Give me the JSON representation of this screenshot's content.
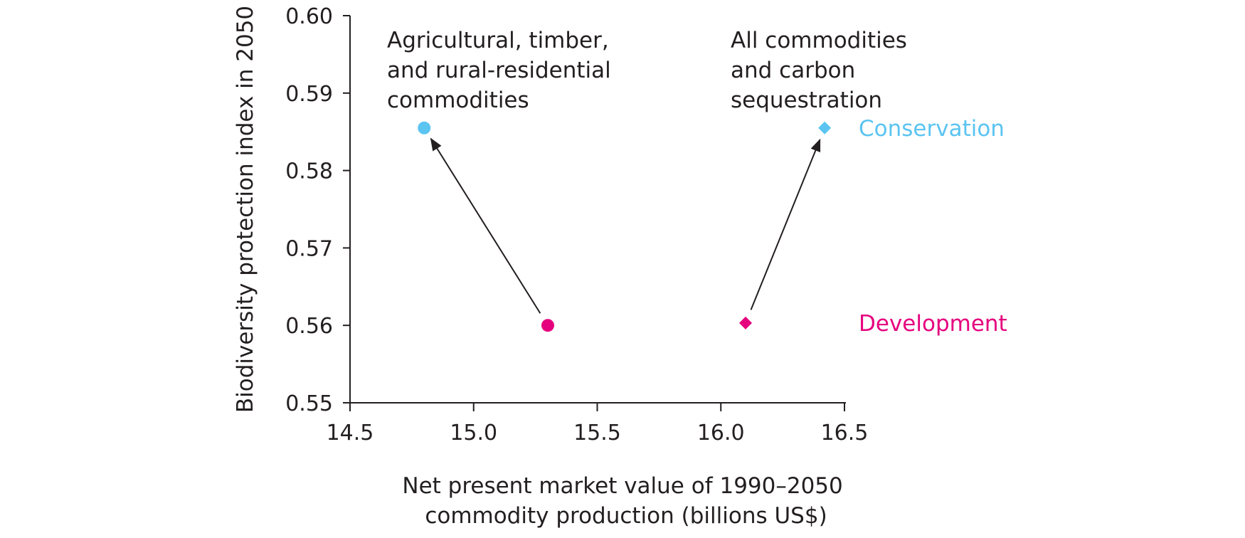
{
  "chart_data": {
    "type": "scatter",
    "title": "",
    "xlabel_lines": [
      "Net present market value of 1990–2050",
      "commodity production (billions US$)"
    ],
    "ylabel": "Biodiversity protection index in 2050",
    "xlim": [
      14.5,
      16.5
    ],
    "ylim": [
      0.55,
      0.6
    ],
    "xticks": [
      "14.5",
      "15.0",
      "15.5",
      "16.0",
      "16.5"
    ],
    "yticks": [
      "0.55",
      "0.56",
      "0.57",
      "0.58",
      "0.59",
      "0.60"
    ],
    "grid": false,
    "series": [
      {
        "name": "Agricultural, timber, and rural-residential commodities",
        "marker": "circle",
        "points": [
          {
            "scenario": "Development",
            "x": 15.3,
            "y": 0.56
          },
          {
            "scenario": "Conservation",
            "x": 14.8,
            "y": 0.5855
          }
        ]
      },
      {
        "name": "All commodities and carbon sequestration",
        "marker": "diamond",
        "points": [
          {
            "scenario": "Development",
            "x": 16.1,
            "y": 0.5603
          },
          {
            "scenario": "Conservation",
            "x": 16.42,
            "y": 0.5855
          }
        ]
      }
    ],
    "annotations": [
      {
        "lines": [
          "Agricultural, timber,",
          "and rural-residential",
          "commodities"
        ]
      },
      {
        "lines": [
          "All commodities",
          "and carbon",
          "sequestration"
        ]
      }
    ],
    "legend": [
      {
        "label": "Conservation",
        "color": "#5bc4f1"
      },
      {
        "label": "Development",
        "color": "#e5007e"
      }
    ]
  },
  "colors": {
    "axis": "#231f20",
    "conservation": "#5bc4f1",
    "development": "#e5007e",
    "arrow": "#231f20"
  }
}
